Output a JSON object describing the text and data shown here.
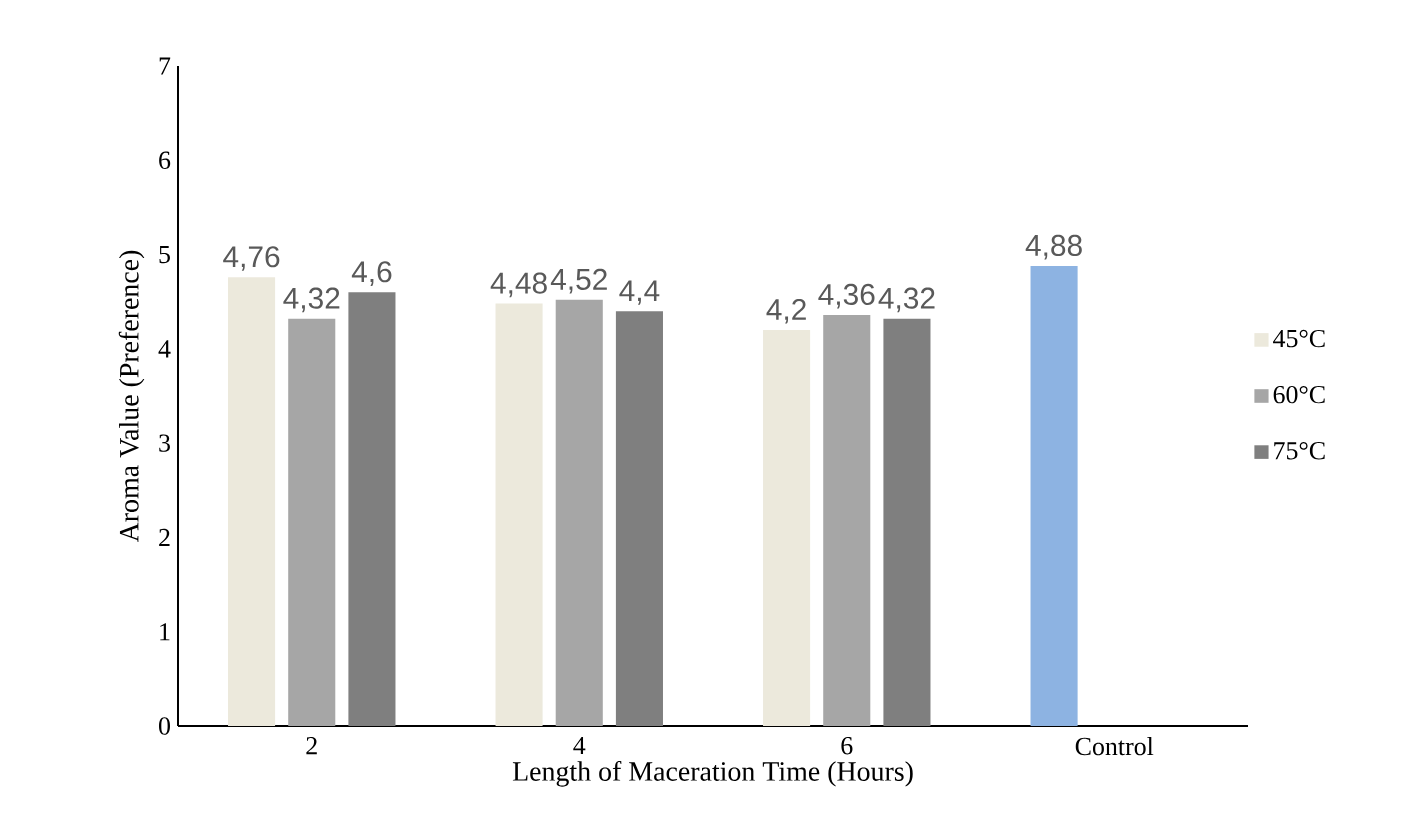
{
  "chart_data": {
    "type": "bar",
    "xlabel": "Length of Maceration Time (Hours)",
    "ylabel": "Aroma Value (Preference)",
    "categories": [
      "2",
      "4",
      "6",
      "Control"
    ],
    "series": [
      {
        "name": "45°C",
        "color": "#ece9dc",
        "colors": [
          "#ece9dc",
          "#ece9dc",
          "#ece9dc",
          "#8db3e2"
        ],
        "values": [
          4.76,
          4.48,
          4.2,
          4.88
        ],
        "value_labels": [
          "4,76",
          "4,48",
          "4,2",
          "4,88"
        ]
      },
      {
        "name": "60°C",
        "color": "#a6a6a6",
        "values": [
          4.32,
          4.52,
          4.36,
          null
        ],
        "value_labels": [
          "4,32",
          "4,52",
          "4,36",
          null
        ]
      },
      {
        "name": "75°C",
        "color": "#7f7f7f",
        "values": [
          4.6,
          4.4,
          4.32,
          null
        ],
        "value_labels": [
          "4,6",
          "4,4",
          "4,32",
          null
        ]
      }
    ],
    "ylim": [
      0,
      7
    ],
    "yticks": [
      0,
      1,
      2,
      3,
      4,
      5,
      6,
      7
    ],
    "grid": false,
    "legend": "right"
  }
}
